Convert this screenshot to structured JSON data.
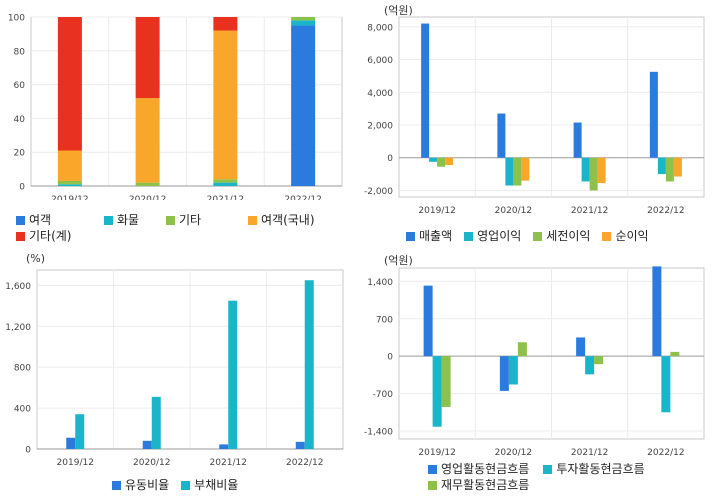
{
  "chart_data": [
    {
      "type": "bar",
      "stacked": true,
      "categories": [
        "2019/12",
        "2020/12",
        "2021/12",
        "2022/12"
      ],
      "ylim": [
        0,
        100
      ],
      "yticks": [
        0,
        20,
        40,
        60,
        80,
        100
      ],
      "grid": true,
      "unit": "",
      "series": [
        {
          "name": "여객",
          "color": "#2b7bde",
          "values": [
            0,
            0,
            0,
            95
          ]
        },
        {
          "name": "화물",
          "color": "#1bb5c9",
          "values": [
            1,
            0,
            2,
            3
          ]
        },
        {
          "name": "기타",
          "color": "#8dc14a",
          "values": [
            2,
            2,
            2,
            2
          ]
        },
        {
          "name": "여객(국내)",
          "color": "#f8a72a",
          "values": [
            18,
            50,
            88,
            0
          ]
        },
        {
          "name": "기타(계)",
          "color": "#e9311f",
          "values": [
            79,
            48,
            8,
            0
          ]
        }
      ],
      "legend_position": "bottom"
    },
    {
      "type": "bar",
      "stacked": false,
      "categories": [
        "2019/12",
        "2020/12",
        "2021/12",
        "2022/12"
      ],
      "ylim": [
        -2400,
        8600
      ],
      "yticks": [
        -2000,
        0,
        2000,
        4000,
        6000,
        8000
      ],
      "grid": true,
      "unit": "(억원)",
      "series": [
        {
          "name": "매출액",
          "color": "#2b7bde",
          "values": [
            8200,
            2700,
            2150,
            5250
          ]
        },
        {
          "name": "영업이익",
          "color": "#1bb5c9",
          "values": [
            -250,
            -1700,
            -1450,
            -1000
          ]
        },
        {
          "name": "세전이익",
          "color": "#8dc14a",
          "values": [
            -550,
            -1700,
            -2000,
            -1450
          ]
        },
        {
          "name": "순이익",
          "color": "#f8a72a",
          "values": [
            -450,
            -1400,
            -1550,
            -1150
          ]
        }
      ],
      "legend_position": "bottom"
    },
    {
      "type": "bar",
      "stacked": false,
      "categories": [
        "2019/12",
        "2020/12",
        "2021/12",
        "2022/12"
      ],
      "ylim": [
        0,
        1750
      ],
      "yticks": [
        0,
        400,
        800,
        1200,
        1600
      ],
      "grid": true,
      "unit": "(%)",
      "series": [
        {
          "name": "유동비율",
          "color": "#2b7bde",
          "values": [
            110,
            80,
            45,
            70
          ]
        },
        {
          "name": "부채비율",
          "color": "#1bb5c9",
          "values": [
            340,
            510,
            1450,
            1650
          ]
        }
      ],
      "legend_position": "bottom"
    },
    {
      "type": "bar",
      "stacked": false,
      "categories": [
        "2019/12",
        "2020/12",
        "2021/12",
        "2022/12"
      ],
      "ylim": [
        -1550,
        1650
      ],
      "yticks": [
        -1400,
        -700,
        0,
        700,
        1400
      ],
      "grid": true,
      "unit": "(억원)",
      "series": [
        {
          "name": "영업활동현금흐름",
          "color": "#2b7bde",
          "values": [
            1320,
            -650,
            350,
            1680
          ]
        },
        {
          "name": "투자활동현금흐름",
          "color": "#1bb5c9",
          "values": [
            -1320,
            -530,
            -340,
            -1050
          ]
        },
        {
          "name": "재무활동현금흐름",
          "color": "#8dc14a",
          "values": [
            -950,
            260,
            -150,
            80
          ]
        }
      ],
      "legend_position": "bottom"
    }
  ]
}
